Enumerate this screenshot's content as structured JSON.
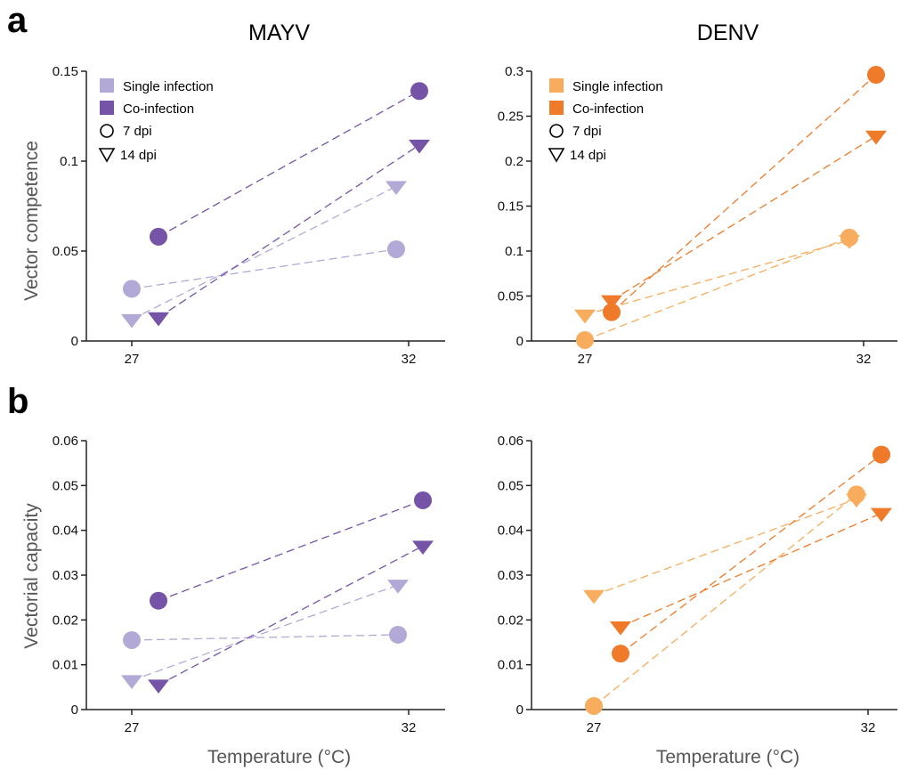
{
  "panel_labels": [
    "a",
    "b"
  ],
  "xlabel": "Temperature (°C)",
  "colors": {
    "mayv_single": "#b3a9d6",
    "mayv_coinf": "#7554a8",
    "denv_single": "#f8ad5e",
    "denv_coinf": "#ef7a2a"
  },
  "legend": {
    "single": "Single infection",
    "coinf": "Co-infection",
    "dpi7": "7 dpi",
    "dpi14": "14 dpi"
  },
  "chart_data": [
    {
      "type": "line",
      "panel": "a",
      "title": "MAYV",
      "ylabel": "Vector competence",
      "xlabel": "",
      "x": [
        27,
        32
      ],
      "ylim": [
        0,
        0.15
      ],
      "yticks": [
        0,
        0.05,
        0.1,
        0.15
      ],
      "ytick_labels": [
        "0",
        "0.05",
        "0.1",
        "0.15"
      ],
      "series": [
        {
          "infection": "single",
          "dpi": "7 dpi",
          "values": [
            0.029,
            0.051
          ]
        },
        {
          "infection": "single",
          "dpi": "14 dpi",
          "values": [
            0.012,
            0.086
          ]
        },
        {
          "infection": "coinf",
          "dpi": "7 dpi",
          "values": [
            0.058,
            0.139
          ]
        },
        {
          "infection": "coinf",
          "dpi": "14 dpi",
          "values": [
            0.013,
            0.109
          ]
        }
      ]
    },
    {
      "type": "line",
      "panel": "a",
      "title": "DENV",
      "ylabel": "",
      "xlabel": "",
      "x": [
        27,
        32
      ],
      "ylim": [
        0,
        0.3
      ],
      "yticks": [
        0,
        0.05,
        0.1,
        0.15,
        0.2,
        0.25,
        0.3
      ],
      "ytick_labels": [
        "0",
        "0.05",
        "0.1",
        "0.15",
        "0.2",
        "0.25",
        "0.3"
      ],
      "series": [
        {
          "infection": "single",
          "dpi": "7 dpi",
          "values": [
            0.001,
            0.115
          ]
        },
        {
          "infection": "single",
          "dpi": "14 dpi",
          "values": [
            0.029,
            0.112
          ]
        },
        {
          "infection": "coinf",
          "dpi": "7 dpi",
          "values": [
            0.032,
            0.296
          ]
        },
        {
          "infection": "coinf",
          "dpi": "14 dpi",
          "values": [
            0.045,
            0.228
          ]
        }
      ]
    },
    {
      "type": "line",
      "panel": "b",
      "title": "",
      "ylabel": "Vectorial capacity",
      "xlabel": "Temperature (°C)",
      "x": [
        27,
        32
      ],
      "ylim": [
        0,
        0.06
      ],
      "yticks": [
        0,
        0.01,
        0.02,
        0.03,
        0.04,
        0.05,
        0.06
      ],
      "ytick_labels": [
        "0",
        "0.01",
        "0.02",
        "0.03",
        "0.04",
        "0.05",
        "0.06"
      ],
      "series": [
        {
          "infection": "single",
          "dpi": "7 dpi",
          "values": [
            0.0155,
            0.0167
          ]
        },
        {
          "infection": "single",
          "dpi": "14 dpi",
          "values": [
            0.0065,
            0.0278
          ]
        },
        {
          "infection": "coinf",
          "dpi": "7 dpi",
          "values": [
            0.0243,
            0.0467
          ]
        },
        {
          "infection": "coinf",
          "dpi": "14 dpi",
          "values": [
            0.0055,
            0.0365
          ]
        }
      ]
    },
    {
      "type": "line",
      "panel": "b",
      "title": "",
      "ylabel": "",
      "xlabel": "Temperature (°C)",
      "x": [
        27,
        32
      ],
      "ylim": [
        0,
        0.06
      ],
      "yticks": [
        0,
        0.01,
        0.02,
        0.03,
        0.04,
        0.05,
        0.06
      ],
      "ytick_labels": [
        "0",
        "0.01",
        "0.02",
        "0.03",
        "0.04",
        "0.05",
        "0.06"
      ],
      "series": [
        {
          "infection": "single",
          "dpi": "7 dpi",
          "values": [
            0.0008,
            0.048
          ]
        },
        {
          "infection": "single",
          "dpi": "14 dpi",
          "values": [
            0.0255,
            0.047
          ]
        },
        {
          "infection": "coinf",
          "dpi": "7 dpi",
          "values": [
            0.0125,
            0.0569
          ]
        },
        {
          "infection": "coinf",
          "dpi": "14 dpi",
          "values": [
            0.0185,
            0.0438
          ]
        }
      ]
    }
  ]
}
